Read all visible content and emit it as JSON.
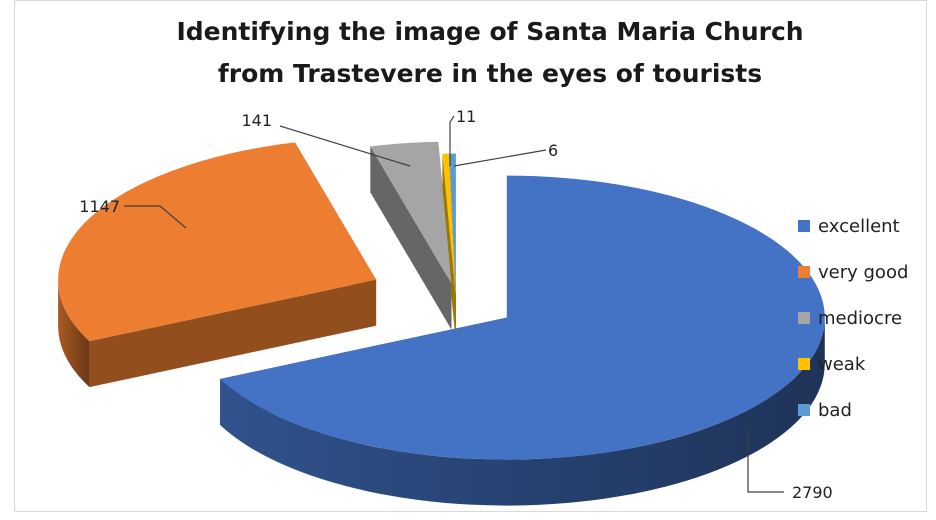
{
  "chart_data": {
    "type": "pie",
    "title_lines": [
      "Identifying the image of Santa Maria Church",
      "from Trastevere in the eyes of tourists"
    ],
    "categories": [
      "excellent",
      "very good",
      "mediocre",
      "weak",
      "bad"
    ],
    "values": [
      2790,
      1147,
      141,
      11,
      6
    ],
    "data_labels": [
      "2790",
      "1147",
      "141",
      "11",
      "6"
    ],
    "exploded": true,
    "three_d": true,
    "legend_position": "right",
    "colors": {
      "excellent": "#4472C4",
      "very good": "#ED7D31",
      "mediocre": "#A5A5A5",
      "weak": "#FFC000",
      "bad": "#5B9BD5"
    }
  }
}
